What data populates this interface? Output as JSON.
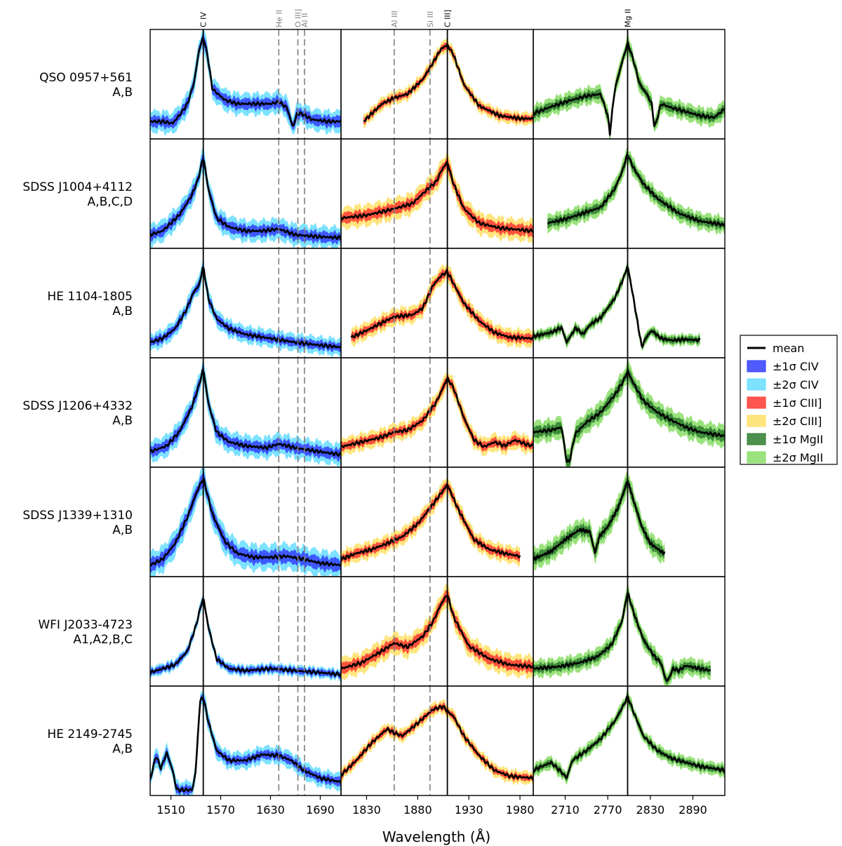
{
  "chart_data": {
    "type": "line",
    "xlabel": "Wavelength (Å)",
    "ylabel": "",
    "legend_position": "right",
    "panels": [
      {
        "key": "civ",
        "xlim": [
          1485,
          1715
        ],
        "xticks": [
          1510,
          1570,
          1630,
          1690
        ]
      },
      {
        "key": "ciii",
        "xlim": [
          1805,
          1993
        ],
        "xticks": [
          1830,
          1880,
          1930,
          1980
        ]
      },
      {
        "key": "mgii",
        "xlim": [
          2665,
          2935
        ],
        "xticks": [
          2710,
          2770,
          2830,
          2890
        ]
      }
    ],
    "lines": [
      {
        "label": "C IV",
        "panel": "civ",
        "x": 1549,
        "style": "solid"
      },
      {
        "label": "He II",
        "panel": "civ",
        "x": 1640,
        "style": "dashed"
      },
      {
        "label": "O III]",
        "panel": "civ",
        "x": 1663,
        "style": "dashed"
      },
      {
        "label": "Al II",
        "panel": "civ",
        "x": 1671,
        "style": "dashed"
      },
      {
        "label": "Al III",
        "panel": "ciii",
        "x": 1857,
        "style": "dashed"
      },
      {
        "label": "Si III",
        "panel": "ciii",
        "x": 1892,
        "style": "dashed"
      },
      {
        "label": "C III]",
        "panel": "ciii",
        "x": 1909,
        "style": "solid"
      },
      {
        "label": "Mg II",
        "panel": "mgii",
        "x": 2798,
        "style": "solid"
      }
    ],
    "legend": [
      {
        "label": "mean",
        "color": "#000000",
        "kind": "line"
      },
      {
        "label": "±1σ CIV",
        "color": "#3340ff",
        "kind": "patch"
      },
      {
        "label": "±2σ CIV",
        "color": "#66ddff",
        "kind": "patch"
      },
      {
        "label": "±1σ CIII]",
        "color": "#ff3a30",
        "kind": "patch"
      },
      {
        "label": "±2σ CIII]",
        "color": "#ffe066",
        "kind": "patch"
      },
      {
        "label": "±1σ MgII",
        "color": "#2e7d2e",
        "kind": "patch"
      },
      {
        "label": "±2σ MgII",
        "color": "#88dd66",
        "kind": "patch"
      }
    ],
    "band_colors": {
      "civ": {
        "one": "#3340ff",
        "two": "#66ddff"
      },
      "ciii": {
        "one": "#ff3a30",
        "two": "#ffe066"
      },
      "mgii": {
        "one": "#2e7d2e",
        "two": "#88dd66"
      }
    },
    "rows": [
      {
        "name": "QSO 0957+561",
        "images": "A,B",
        "civ": {
          "x": [
            1485,
            1500,
            1512,
            1520,
            1530,
            1538,
            1544,
            1549,
            1554,
            1560,
            1575,
            1590,
            1610,
            1630,
            1640,
            1650,
            1657,
            1662,
            1668,
            1680,
            1700,
            1715
          ],
          "y": [
            0.12,
            0.12,
            0.1,
            0.18,
            0.3,
            0.52,
            0.85,
            0.98,
            0.8,
            0.45,
            0.34,
            0.3,
            0.3,
            0.3,
            0.32,
            0.26,
            0.06,
            0.2,
            0.2,
            0.14,
            0.12,
            0.12
          ],
          "s1": 0.05,
          "s2": 0.1
        },
        "ciii": {
          "x": [
            1827,
            1835,
            1845,
            1857,
            1870,
            1885,
            1895,
            1903,
            1909,
            1915,
            1925,
            1940,
            1960,
            1980,
            1993
          ],
          "y": [
            0.12,
            0.2,
            0.3,
            0.36,
            0.4,
            0.55,
            0.72,
            0.86,
            0.9,
            0.8,
            0.5,
            0.28,
            0.18,
            0.15,
            0.15
          ],
          "s1": 0.03,
          "s2": 0.06
        },
        "mgii": {
          "x": [
            2665,
            2690,
            2715,
            2740,
            2760,
            2770,
            2773,
            2776,
            2780,
            2790,
            2798,
            2806,
            2815,
            2825,
            2832,
            2836,
            2845,
            2860,
            2880,
            2900,
            2920,
            2935
          ],
          "y": [
            0.2,
            0.27,
            0.33,
            0.38,
            0.4,
            0.18,
            0.0,
            0.2,
            0.45,
            0.72,
            0.92,
            0.75,
            0.5,
            0.4,
            0.3,
            0.05,
            0.3,
            0.26,
            0.22,
            0.18,
            0.16,
            0.25
          ],
          "s1": 0.04,
          "s2": 0.08
        }
      },
      {
        "name": "SDSS J1004+4112",
        "images": "A,B,C,D",
        "civ": {
          "x": [
            1485,
            1500,
            1520,
            1535,
            1543,
            1549,
            1555,
            1565,
            1580,
            1600,
            1620,
            1640,
            1660,
            1690,
            1715
          ],
          "y": [
            0.08,
            0.12,
            0.28,
            0.48,
            0.65,
            0.88,
            0.55,
            0.25,
            0.16,
            0.12,
            0.12,
            0.14,
            0.08,
            0.06,
            0.05
          ],
          "s1": 0.05,
          "s2": 0.1
        },
        "ciii": {
          "x": [
            1805,
            1830,
            1855,
            1875,
            1890,
            1898,
            1904,
            1909,
            1915,
            1925,
            1940,
            1960,
            1993
          ],
          "y": [
            0.25,
            0.28,
            0.34,
            0.4,
            0.55,
            0.62,
            0.75,
            0.82,
            0.6,
            0.35,
            0.2,
            0.15,
            0.12
          ],
          "s1": 0.05,
          "s2": 0.1
        },
        "mgii": {
          "x": [
            2685,
            2710,
            2735,
            2760,
            2780,
            2790,
            2798,
            2805,
            2820,
            2840,
            2870,
            2900,
            2935
          ],
          "y": [
            0.2,
            0.24,
            0.3,
            0.36,
            0.55,
            0.72,
            0.9,
            0.78,
            0.6,
            0.45,
            0.3,
            0.22,
            0.18
          ],
          "s1": 0.04,
          "s2": 0.08
        }
      },
      {
        "name": "HE 1104-1805",
        "images": "A,B",
        "civ": {
          "x": [
            1485,
            1500,
            1515,
            1528,
            1538,
            1544,
            1549,
            1555,
            1565,
            1580,
            1600,
            1630,
            1660,
            1690,
            1715
          ],
          "y": [
            0.1,
            0.14,
            0.24,
            0.42,
            0.62,
            0.68,
            0.88,
            0.55,
            0.34,
            0.24,
            0.18,
            0.14,
            0.1,
            0.07,
            0.05
          ],
          "s1": 0.04,
          "s2": 0.08
        },
        "ciii": {
          "x": [
            1815,
            1830,
            1845,
            1857,
            1875,
            1885,
            1895,
            1903,
            1909,
            1915,
            1925,
            1940,
            1955,
            1970,
            1993
          ],
          "y": [
            0.15,
            0.22,
            0.3,
            0.36,
            0.38,
            0.45,
            0.68,
            0.78,
            0.82,
            0.7,
            0.5,
            0.32,
            0.2,
            0.15,
            0.14
          ],
          "s1": 0.04,
          "s2": 0.08
        },
        "mgii": {
          "x": [
            2665,
            2690,
            2705,
            2712,
            2725,
            2735,
            2745,
            2760,
            2780,
            2792,
            2798,
            2805,
            2812,
            2818,
            2824,
            2832,
            2845,
            2860,
            2880,
            2900
          ],
          "y": [
            0.16,
            0.2,
            0.25,
            0.1,
            0.25,
            0.18,
            0.28,
            0.35,
            0.55,
            0.75,
            0.88,
            0.6,
            0.3,
            0.05,
            0.15,
            0.22,
            0.14,
            0.12,
            0.13,
            0.12
          ],
          "s1": 0.03,
          "s2": 0.05
        }
      },
      {
        "name": "SDSS J1206+4332",
        "images": "A,B",
        "civ": {
          "x": [
            1485,
            1505,
            1520,
            1535,
            1544,
            1549,
            1555,
            1565,
            1580,
            1600,
            1625,
            1640,
            1660,
            1690,
            1715
          ],
          "y": [
            0.1,
            0.16,
            0.3,
            0.55,
            0.78,
            0.95,
            0.6,
            0.3,
            0.2,
            0.16,
            0.14,
            0.18,
            0.14,
            0.1,
            0.07
          ],
          "s1": 0.05,
          "s2": 0.1
        },
        "ciii": {
          "x": [
            1805,
            1825,
            1845,
            1857,
            1870,
            1885,
            1898,
            1909,
            1915,
            1925,
            1935,
            1945,
            1955,
            1965,
            1975,
            1980,
            1985,
            1993
          ],
          "y": [
            0.15,
            0.2,
            0.25,
            0.3,
            0.32,
            0.42,
            0.6,
            0.85,
            0.75,
            0.45,
            0.22,
            0.15,
            0.2,
            0.16,
            0.22,
            0.2,
            0.18,
            0.16
          ],
          "s1": 0.04,
          "s2": 0.08
        },
        "mgii": {
          "x": [
            2665,
            2690,
            2705,
            2712,
            2716,
            2724,
            2740,
            2760,
            2780,
            2792,
            2798,
            2806,
            2820,
            2840,
            2860,
            2880,
            2900,
            2935
          ],
          "y": [
            0.3,
            0.32,
            0.35,
            0.0,
            0.0,
            0.28,
            0.4,
            0.5,
            0.68,
            0.82,
            0.92,
            0.8,
            0.62,
            0.5,
            0.42,
            0.35,
            0.3,
            0.26
          ],
          "s1": 0.05,
          "s2": 0.1
        }
      },
      {
        "name": "SDSS J1339+1310",
        "images": "A,B",
        "civ": {
          "x": [
            1485,
            1500,
            1515,
            1530,
            1540,
            1549,
            1560,
            1575,
            1590,
            1610,
            1630,
            1650,
            1670,
            1690,
            1715
          ],
          "y": [
            0.06,
            0.12,
            0.28,
            0.55,
            0.78,
            0.95,
            0.58,
            0.3,
            0.18,
            0.14,
            0.14,
            0.15,
            0.12,
            0.08,
            0.06
          ],
          "s1": 0.06,
          "s2": 0.12
        },
        "ciii": {
          "x": [
            1805,
            1820,
            1835,
            1850,
            1865,
            1880,
            1895,
            1909,
            1920,
            1935,
            1950,
            1965,
            1980
          ],
          "y": [
            0.12,
            0.18,
            0.22,
            0.28,
            0.35,
            0.48,
            0.68,
            0.88,
            0.62,
            0.32,
            0.22,
            0.18,
            0.15
          ],
          "s1": 0.04,
          "s2": 0.08
        },
        "mgii": {
          "x": [
            2665,
            2690,
            2710,
            2730,
            2745,
            2752,
            2758,
            2770,
            2785,
            2798,
            2808,
            2818,
            2830,
            2845,
            2850
          ],
          "y": [
            0.12,
            0.2,
            0.32,
            0.42,
            0.4,
            0.18,
            0.35,
            0.45,
            0.65,
            0.92,
            0.68,
            0.45,
            0.28,
            0.2,
            0.18
          ],
          "s1": 0.05,
          "s2": 0.1
        }
      },
      {
        "name": "WFI J2033-4723",
        "images": "A1,A2,B,C",
        "civ": {
          "x": [
            1485,
            1500,
            1515,
            1530,
            1540,
            1545,
            1549,
            1555,
            1565,
            1580,
            1600,
            1630,
            1660,
            1690,
            1715
          ],
          "y": [
            0.08,
            0.12,
            0.16,
            0.3,
            0.55,
            0.72,
            0.85,
            0.55,
            0.22,
            0.12,
            0.1,
            0.12,
            0.1,
            0.08,
            0.06
          ],
          "s1": 0.03,
          "s2": 0.05
        },
        "ciii": {
          "x": [
            1805,
            1825,
            1845,
            1857,
            1870,
            1885,
            1895,
            1903,
            1909,
            1915,
            1930,
            1950,
            1970,
            1993
          ],
          "y": [
            0.12,
            0.18,
            0.3,
            0.38,
            0.34,
            0.45,
            0.6,
            0.78,
            0.88,
            0.65,
            0.35,
            0.22,
            0.16,
            0.14
          ],
          "s1": 0.05,
          "s2": 0.1
        },
        "mgii": {
          "x": [
            2665,
            2700,
            2730,
            2755,
            2775,
            2790,
            2798,
            2806,
            2820,
            2835,
            2845,
            2852,
            2855,
            2862,
            2870,
            2880,
            2900,
            2915
          ],
          "y": [
            0.12,
            0.14,
            0.18,
            0.24,
            0.36,
            0.6,
            0.9,
            0.7,
            0.42,
            0.25,
            0.18,
            0.0,
            0.0,
            0.12,
            0.1,
            0.15,
            0.12,
            0.1
          ],
          "s1": 0.04,
          "s2": 0.08
        }
      },
      {
        "name": "HE 2149-2745",
        "images": "A,B",
        "civ": {
          "x": [
            1485,
            1492,
            1498,
            1505,
            1512,
            1517,
            1524,
            1530,
            1536,
            1540,
            1545,
            1549,
            1555,
            1565,
            1580,
            1600,
            1620,
            1640,
            1655,
            1670,
            1690,
            1715
          ],
          "y": [
            0.1,
            0.35,
            0.22,
            0.38,
            0.2,
            0.0,
            0.0,
            0.0,
            0.0,
            0.2,
            0.9,
            0.95,
            0.7,
            0.4,
            0.3,
            0.3,
            0.36,
            0.35,
            0.3,
            0.2,
            0.12,
            0.08
          ],
          "s1": 0.04,
          "s2": 0.08
        },
        "ciii": {
          "x": [
            1805,
            1820,
            1835,
            1850,
            1857,
            1865,
            1880,
            1895,
            1905,
            1909,
            1915,
            1925,
            1940,
            1955,
            1970,
            1993
          ],
          "y": [
            0.15,
            0.3,
            0.48,
            0.62,
            0.58,
            0.55,
            0.68,
            0.82,
            0.85,
            0.8,
            0.75,
            0.55,
            0.35,
            0.2,
            0.14,
            0.12
          ],
          "s1": 0.03,
          "s2": 0.06
        },
        "mgii": {
          "x": [
            2665,
            2690,
            2705,
            2712,
            2720,
            2740,
            2760,
            2780,
            2792,
            2798,
            2806,
            2820,
            2840,
            2860,
            2880,
            2900,
            2935
          ],
          "y": [
            0.2,
            0.28,
            0.18,
            0.12,
            0.3,
            0.4,
            0.52,
            0.7,
            0.86,
            0.95,
            0.8,
            0.55,
            0.4,
            0.32,
            0.28,
            0.24,
            0.2
          ],
          "s1": 0.03,
          "s2": 0.06
        }
      }
    ]
  }
}
